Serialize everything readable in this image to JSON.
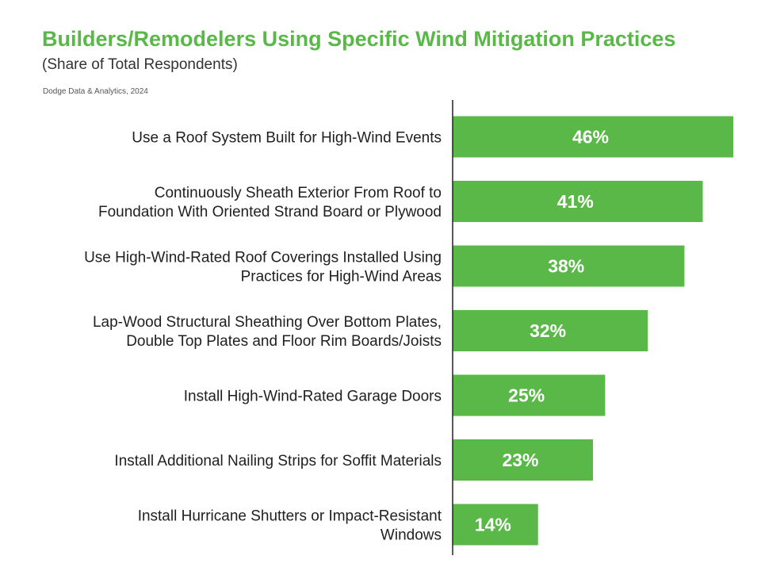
{
  "header": {
    "title": "Builders/Remodelers Using Specific Wind Mitigation Practices",
    "subtitle": "(Share of Total Respondents)",
    "source": "Dodge Data & Analytics, 2024"
  },
  "colors": {
    "title": "#5ab848",
    "bar": "#5ab848",
    "bar_label": "#ffffff",
    "category_label": "#1f1f1f",
    "axis": "#222222"
  },
  "chart_data": {
    "type": "bar",
    "orientation": "horizontal",
    "categories": [
      [
        "Use a Roof System Built for High-Wind Events"
      ],
      [
        "Continuously Sheath Exterior From Roof to",
        "Foundation With Oriented Strand Board or Plywood"
      ],
      [
        "Use High-Wind-Rated Roof Coverings Installed Using",
        "Practices for High-Wind Areas"
      ],
      [
        "Lap-Wood Structural Sheathing Over Bottom Plates,",
        "Double Top Plates and Floor Rim Boards/Joists"
      ],
      [
        "Install High-Wind-Rated Garage Doors"
      ],
      [
        "Install Additional Nailing Strips for Soffit Materials"
      ],
      [
        "Install Hurricane Shutters or Impact-Resistant",
        "Windows"
      ]
    ],
    "values": [
      46,
      41,
      38,
      32,
      25,
      23,
      14
    ],
    "value_labels": [
      "46%",
      "41%",
      "38%",
      "32%",
      "25%",
      "23%",
      "14%"
    ],
    "unit": "%",
    "xlim": [
      0,
      46
    ],
    "grid": false,
    "legend": "none"
  }
}
